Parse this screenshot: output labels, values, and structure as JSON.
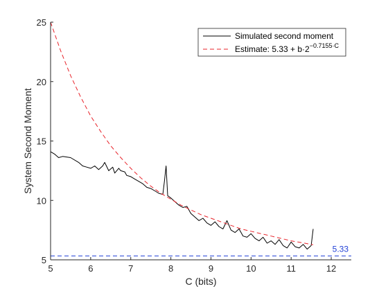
{
  "chart_data": {
    "type": "line",
    "title": "",
    "xlabel": "C (bits)",
    "ylabel": "System Second Moment",
    "xlim": [
      5,
      12.5
    ],
    "ylim": [
      5,
      25
    ],
    "xticks": [
      5,
      6,
      7,
      8,
      9,
      10,
      11,
      12
    ],
    "yticks": [
      5,
      10,
      15,
      20,
      25
    ],
    "grid": false,
    "legend_position": "top-right",
    "series": [
      {
        "name": "Simulated second moment",
        "style": "solid",
        "color": "#000000",
        "x": [
          5.0,
          5.1,
          5.2,
          5.3,
          5.5,
          5.7,
          5.8,
          5.9,
          6.0,
          6.1,
          6.2,
          6.3,
          6.35,
          6.45,
          6.55,
          6.6,
          6.7,
          6.75,
          6.85,
          6.9,
          7.0,
          7.1,
          7.2,
          7.3,
          7.4,
          7.5,
          7.6,
          7.7,
          7.8,
          7.84,
          7.88,
          7.92,
          8.0,
          8.1,
          8.2,
          8.3,
          8.4,
          8.5,
          8.6,
          8.7,
          8.8,
          8.9,
          9.0,
          9.1,
          9.2,
          9.3,
          9.4,
          9.5,
          9.6,
          9.7,
          9.8,
          9.9,
          10.0,
          10.1,
          10.2,
          10.3,
          10.4,
          10.5,
          10.6,
          10.7,
          10.8,
          10.9,
          11.0,
          11.1,
          11.2,
          11.3,
          11.4,
          11.5,
          11.55
        ],
        "values": [
          14.1,
          13.9,
          13.6,
          13.7,
          13.6,
          13.2,
          12.9,
          12.8,
          12.7,
          12.9,
          12.6,
          12.9,
          13.2,
          12.5,
          12.8,
          12.3,
          12.7,
          12.5,
          12.4,
          12.1,
          12.0,
          11.8,
          11.6,
          11.4,
          11.1,
          11.0,
          10.8,
          10.6,
          10.5,
          11.6,
          12.9,
          10.4,
          10.2,
          9.9,
          9.6,
          9.4,
          9.5,
          8.9,
          8.6,
          8.3,
          8.5,
          8.1,
          7.9,
          8.2,
          7.8,
          7.6,
          8.3,
          7.5,
          7.3,
          7.6,
          7.0,
          6.9,
          7.2,
          6.8,
          6.6,
          6.9,
          6.4,
          6.6,
          6.3,
          6.7,
          6.2,
          6.0,
          6.5,
          6.1,
          6.0,
          6.3,
          5.9,
          6.2,
          7.6
        ]
      },
      {
        "name": "Estimate: 5.33 + b·2^{-0.7155·C}",
        "style": "dashed",
        "color": "#e8232a",
        "x": [
          5.0,
          5.25,
          5.5,
          5.75,
          6.0,
          6.25,
          6.5,
          6.75,
          7.0,
          7.25,
          7.5,
          7.75,
          8.0,
          8.25,
          8.5,
          8.75,
          9.0,
          9.25,
          9.5,
          9.75,
          10.0,
          10.25,
          10.5,
          10.75,
          11.0,
          11.25,
          11.5,
          11.55
        ],
        "values": [
          25.0,
          22.6,
          20.5,
          18.7,
          17.1,
          15.8,
          14.6,
          13.6,
          12.7,
          11.9,
          11.2,
          10.6,
          10.1,
          9.6,
          9.2,
          8.8,
          8.5,
          8.2,
          7.9,
          7.6,
          7.4,
          7.2,
          7.0,
          6.8,
          6.6,
          6.45,
          6.3,
          6.27
        ]
      }
    ],
    "reference_lines": [
      {
        "orientation": "horizontal",
        "value": 5.33,
        "label": "5.33",
        "color": "#1f3fd6",
        "style": "dashed"
      }
    ]
  },
  "legend": {
    "entries": [
      {
        "text": "Simulated second moment"
      },
      {
        "base": "Estimate: 5.33 + b·2",
        "sup": "−0.7155·C"
      }
    ]
  }
}
